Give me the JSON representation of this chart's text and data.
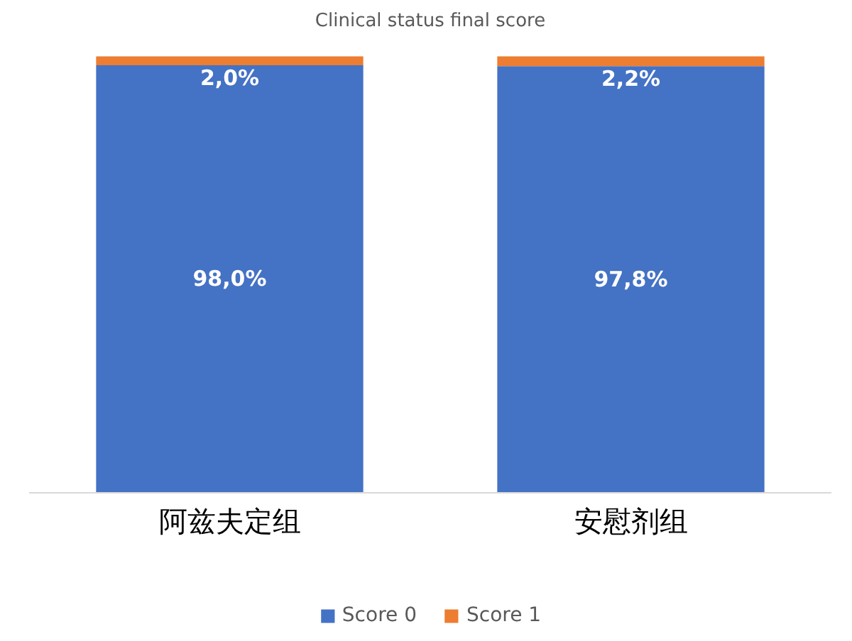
{
  "chart_data": {
    "type": "bar",
    "stacked": true,
    "title": "Clinical status final score",
    "categories": [
      "阿兹夫定组",
      "安慰剂组"
    ],
    "series": [
      {
        "name": "Score 0",
        "color": "#4472c4",
        "values": [
          98.0,
          97.8
        ],
        "value_labels": [
          "98,0%",
          "97,8%"
        ]
      },
      {
        "name": "Score 1",
        "color": "#ed7d31",
        "values": [
          2.0,
          2.2
        ],
        "value_labels": [
          "2,0%",
          "2,2%"
        ]
      }
    ],
    "legend": "bottom",
    "grid": false
  }
}
